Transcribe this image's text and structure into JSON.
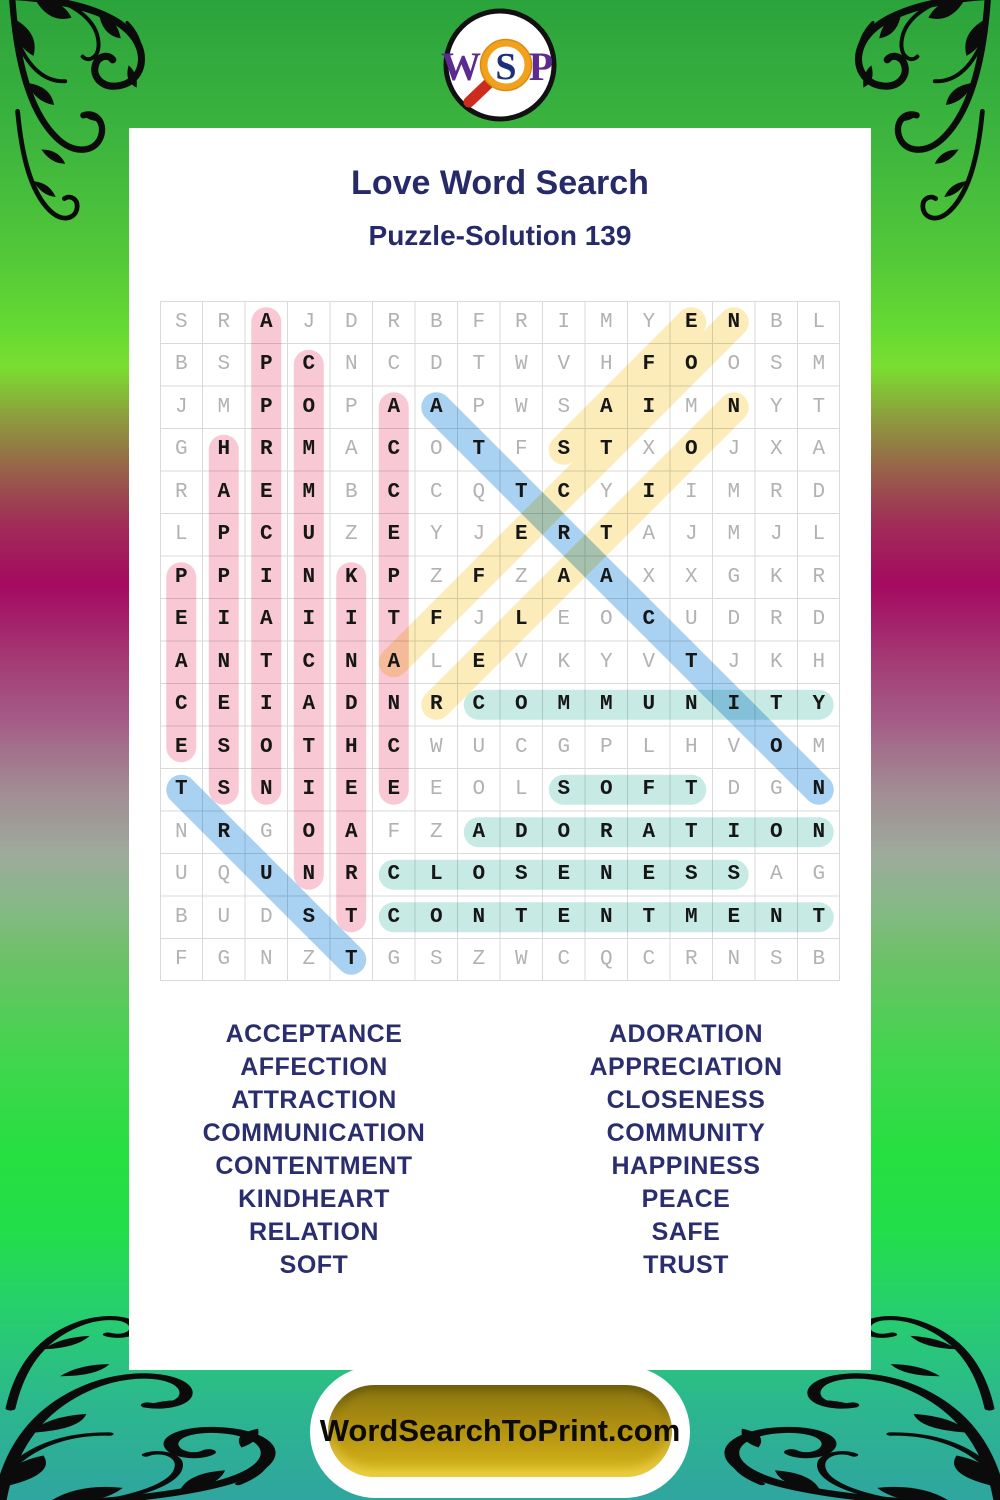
{
  "logo": {
    "letters": [
      "W",
      "S",
      "P"
    ]
  },
  "header": {
    "title": "Love Word Search",
    "subtitle": "Puzzle-Solution 139"
  },
  "grid": {
    "size": 16,
    "rows": [
      "SRAJDRBFRIMYENBL",
      "BSPCNCDTWVHFOOSM",
      "JMPOPAAPWSAIMNYT",
      "GHRMACOTFSTXOJXA",
      "RAEMBCCQTCYIIMRD",
      "LPCUZEYJERTAJMJL",
      "PPINKPZFZAAXXGKR",
      "EIAIITFJLEOCUDRD",
      "ANTCNALEVKYVTJKH",
      "CEIADNRCOMMUNITY",
      "ESOTHCWUCGPLHVOM",
      "TSNIEEEOLSOFTDGN",
      "NRGOAFZADORATION",
      "UQUNRCLOSENESSAG",
      "BUDSTCONTENTMENT",
      "FGNZTGSZWCQCRNSB"
    ]
  },
  "solutions": [
    {
      "word": "APPRECIATION",
      "color_key": "pink",
      "start": [
        1,
        3
      ],
      "end": [
        12,
        3
      ]
    },
    {
      "word": "COMMUNICATION",
      "color_key": "pink",
      "start": [
        2,
        4
      ],
      "end": [
        14,
        4
      ]
    },
    {
      "word": "ACCEPTANCE",
      "color_key": "pink",
      "start": [
        3,
        6
      ],
      "end": [
        12,
        6
      ]
    },
    {
      "word": "HAPPINESS",
      "color_key": "pink",
      "start": [
        4,
        2
      ],
      "end": [
        12,
        2
      ]
    },
    {
      "word": "PEACE",
      "color_key": "pink",
      "start": [
        7,
        1
      ],
      "end": [
        11,
        1
      ]
    },
    {
      "word": "KINDHEART",
      "color_key": "pink",
      "start": [
        7,
        5
      ],
      "end": [
        15,
        5
      ]
    },
    {
      "word": "AFFECTION",
      "color_key": "yellow",
      "start": [
        9,
        6
      ],
      "end": [
        1,
        14
      ]
    },
    {
      "word": "SAFE",
      "color_key": "yellow",
      "start": [
        4,
        10
      ],
      "end": [
        1,
        13
      ]
    },
    {
      "word": "RELATION",
      "color_key": "yellow",
      "start": [
        10,
        7
      ],
      "end": [
        3,
        14
      ]
    },
    {
      "word": "COMMUNITY",
      "color_key": "teal",
      "start": [
        10,
        8
      ],
      "end": [
        10,
        16
      ]
    },
    {
      "word": "SOFT",
      "color_key": "teal",
      "start": [
        12,
        10
      ],
      "end": [
        12,
        13
      ]
    },
    {
      "word": "ADORATION",
      "color_key": "teal",
      "start": [
        13,
        8
      ],
      "end": [
        13,
        16
      ]
    },
    {
      "word": "CLOSENESS",
      "color_key": "teal",
      "start": [
        14,
        6
      ],
      "end": [
        14,
        14
      ]
    },
    {
      "word": "CONTENTMENT",
      "color_key": "teal",
      "start": [
        15,
        6
      ],
      "end": [
        15,
        16
      ]
    },
    {
      "word": "ATTRACTION",
      "color_key": "blue",
      "start": [
        3,
        7
      ],
      "end": [
        12,
        16
      ]
    },
    {
      "word": "TRUST",
      "color_key": "blue",
      "start": [
        12,
        1
      ],
      "end": [
        16,
        5
      ]
    }
  ],
  "highlight_colors": {
    "pink": "#f8c9d4",
    "yellow": "#fbecb9",
    "teal": "#c7ebe4",
    "blue": "#a9d2f2"
  },
  "word_lists": {
    "left": [
      "ACCEPTANCE",
      "AFFECTION",
      "ATTRACTION",
      "COMMUNICATION",
      "CONTENTMENT",
      "KINDHEART",
      "RELATION",
      "SOFT"
    ],
    "right": [
      "ADORATION",
      "APPRECIATION",
      "CLOSENESS",
      "COMMUNITY",
      "HAPPINESS",
      "PEACE",
      "SAFE",
      "TRUST"
    ]
  },
  "footer": {
    "site_label": "WordSearchToPrint.com"
  },
  "colors": {
    "title_text": "#272a68",
    "word_text": "#2b2e6e",
    "grid_line": "#d9d9d9",
    "letter_gray": "#b2b2b2",
    "letter_solution": "#161616",
    "button_gold": "#c3a214",
    "logo_letter_purple": "#5b2b8f",
    "logo_lens_orange": "#f2a11c",
    "logo_handle_red": "#cc2b1d"
  }
}
